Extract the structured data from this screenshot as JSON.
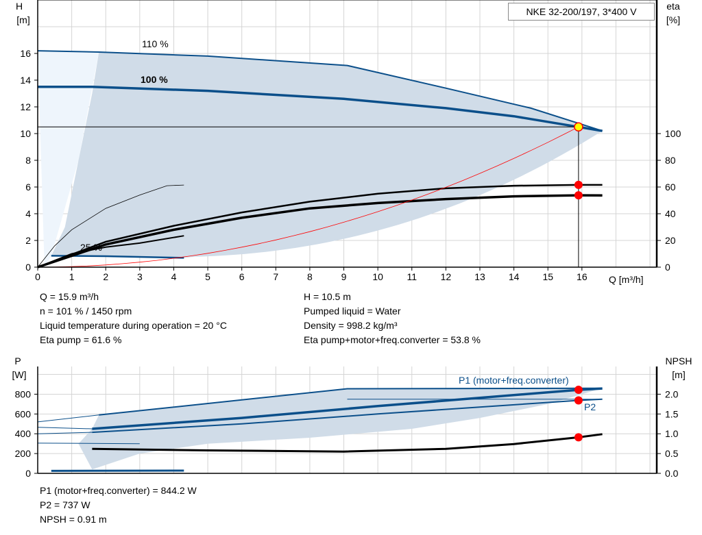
{
  "title": "NKE 32-200/197, 3*400 V",
  "chart_data": [
    {
      "type": "line",
      "name": "head-efficiency",
      "xlabel": "Q [m³/h]",
      "ylabel_left": "H",
      "unit_left": "[m]",
      "ylabel_right": "eta",
      "unit_right": "[%]",
      "xlim": [
        0,
        18.2
      ],
      "ylim": [
        0,
        20
      ],
      "eta_lim": [
        0,
        100
      ],
      "x_ticks": [
        "0",
        "1",
        "2",
        "3",
        "4",
        "5",
        "6",
        "7",
        "8",
        "9",
        "10",
        "11",
        "12",
        "13",
        "14",
        "15",
        "16"
      ],
      "y_ticks": [
        "0",
        "2",
        "4",
        "6",
        "8",
        "10",
        "12",
        "14",
        "16"
      ],
      "eta_ticks": [
        "0",
        "20",
        "40",
        "60",
        "80",
        "100"
      ],
      "curve_labels": {
        "c110": "110 %",
        "c100": "100 %",
        "c25": "25 %"
      },
      "series": [
        {
          "name": "H 110 %",
          "points": [
            [
              0,
              16.2
            ],
            [
              1.8,
              16.1
            ],
            [
              5,
              15.8
            ],
            [
              9.1,
              15.1
            ],
            [
              12,
              13.4
            ],
            [
              14.5,
              11.9
            ],
            [
              16.6,
              10.2
            ]
          ]
        },
        {
          "name": "H 100 %",
          "points": [
            [
              0,
              13.5
            ],
            [
              1.6,
              13.5
            ],
            [
              5,
              13.2
            ],
            [
              9,
              12.6
            ],
            [
              12,
              11.9
            ],
            [
              14,
              11.3
            ],
            [
              15.9,
              10.5
            ],
            [
              16.6,
              10.2
            ]
          ]
        },
        {
          "name": "H 25 %",
          "points": [
            [
              0.4,
              0.85
            ],
            [
              2,
              0.82
            ],
            [
              4.3,
              0.7
            ]
          ]
        },
        {
          "name": "eta pump",
          "axis": "eta",
          "points": [
            [
              0,
              0
            ],
            [
              2,
              19
            ],
            [
              4,
              31
            ],
            [
              6,
              41
            ],
            [
              8,
              49
            ],
            [
              10,
              55
            ],
            [
              12,
              59
            ],
            [
              14,
              61
            ],
            [
              15.9,
              61.6
            ],
            [
              16.6,
              61.6
            ]
          ]
        },
        {
          "name": "eta pump+motor+freq.converter",
          "axis": "eta",
          "points": [
            [
              0,
              0
            ],
            [
              2,
              17
            ],
            [
              4,
              28
            ],
            [
              6,
              37
            ],
            [
              8,
              44
            ],
            [
              10,
              48
            ],
            [
              12,
              51
            ],
            [
              14,
              53
            ],
            [
              15.9,
              53.8
            ],
            [
              16.6,
              53.7
            ]
          ]
        },
        {
          "name": "eta 25 %",
          "axis": "eta",
          "points": [
            [
              0,
              0
            ],
            [
              1,
              10
            ],
            [
              2,
              15
            ],
            [
              3,
              18
            ],
            [
              4.3,
              23.5
            ]
          ]
        },
        {
          "name": "eta thin",
          "axis": "eta",
          "points": [
            [
              0,
              0
            ],
            [
              0.5,
              16
            ],
            [
              1,
              28
            ],
            [
              2,
              44
            ],
            [
              3,
              54
            ],
            [
              3.8,
              61
            ],
            [
              4.3,
              61.5
            ]
          ]
        }
      ],
      "operating_point": {
        "Q": 15.9,
        "H": 10.5,
        "eta_pump": 61.6,
        "eta_total": 53.8
      }
    },
    {
      "type": "line",
      "name": "power-npsh",
      "ylabel_left": "P",
      "unit_left": "[W]",
      "ylabel_right": "NPSH",
      "unit_right": "[m]",
      "ylim": [
        0,
        1080
      ],
      "npsh_lim": [
        0,
        2.7
      ],
      "y_ticks": [
        "0",
        "200",
        "400",
        "600",
        "800"
      ],
      "npsh_ticks": [
        "0.0",
        "0.5",
        "1.0",
        "1.5",
        "2.0"
      ],
      "labels": {
        "p1": "P1 (motor+freq.converter)",
        "p2": "P2"
      },
      "series": [
        {
          "name": "P1 110 %",
          "points": [
            [
              1.8,
              590
            ],
            [
              9.1,
              855
            ],
            [
              16.6,
              860
            ]
          ]
        },
        {
          "name": "P1 100 %",
          "points": [
            [
              1.6,
              450
            ],
            [
              6,
              560
            ],
            [
              10,
              680
            ],
            [
              15.9,
              844.2
            ],
            [
              16.6,
              858
            ]
          ]
        },
        {
          "name": "P2 100 %",
          "points": [
            [
              1.6,
              415
            ],
            [
              6,
              500
            ],
            [
              10,
              600
            ],
            [
              15.9,
              737
            ],
            [
              16.6,
              750
            ]
          ]
        },
        {
          "name": "P 25 %",
          "points": [
            [
              0.4,
              25
            ],
            [
              4.3,
              28
            ]
          ]
        },
        {
          "name": "NPSH",
          "axis": "npsh",
          "points": [
            [
              1.6,
              0.62
            ],
            [
              5,
              0.58
            ],
            [
              9,
              0.55
            ],
            [
              12,
              0.62
            ],
            [
              14,
              0.74
            ],
            [
              15.9,
              0.91
            ],
            [
              16.6,
              0.99
            ]
          ]
        }
      ],
      "operating_point": {
        "P1": 844.2,
        "P2": 737,
        "NPSH": 0.91
      }
    }
  ],
  "info_top": {
    "left": [
      "Q = 15.9 m³/h",
      "n = 101 % / 1450 rpm",
      "Liquid temperature during operation = 20 °C",
      "Eta pump = 61.6 %"
    ],
    "right": [
      "H = 10.5 m",
      "Pumped liquid = Water",
      "Density = 998.2 kg/m³",
      "Eta pump+motor+freq.converter = 53.8 %"
    ]
  },
  "info_bottom": [
    "P1 (motor+freq.converter) = 844.2 W",
    "P2 = 737 W",
    "NPSH = 0.91 m"
  ],
  "colors": {
    "curve": "#0b4f8a",
    "band": "#d0dce8",
    "light": "#eef5fc",
    "point": "#ff0000",
    "system": "#ff0000"
  }
}
